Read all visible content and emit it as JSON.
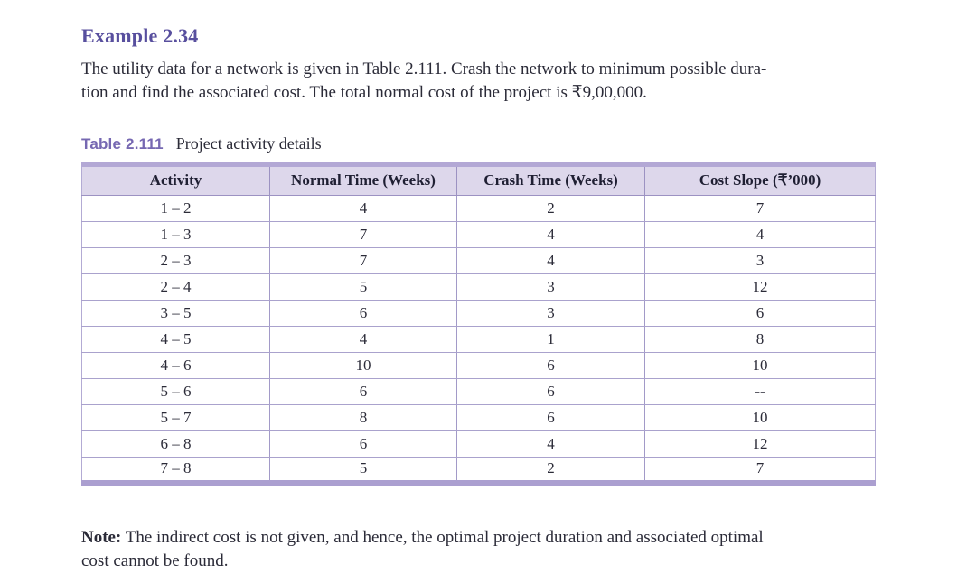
{
  "page": {
    "example_heading": "Example 2.34",
    "intro_line1": "The utility data for a network is given in Table 2.111. Crash the network to minimum possible dura-",
    "intro_line2": "tion and find the associated cost. The total normal cost of the project is ₹9,00,000.",
    "note_label": "Note:",
    "note_line1_rest": "  The indirect cost is not given, and hence, the optimal project duration and associated optimal",
    "note_line2": "cost cannot be found."
  },
  "table": {
    "label": "Table 2.111",
    "caption": "Project activity details",
    "columns": [
      "Activity",
      "Normal Time (Weeks)",
      "Crash Time (Weeks)",
      "Cost Slope (₹’000)"
    ],
    "rows": [
      [
        "1 – 2",
        "4",
        "2",
        "7"
      ],
      [
        "1 – 3",
        "7",
        "4",
        "4"
      ],
      [
        "2 – 3",
        "7",
        "4",
        "3"
      ],
      [
        "2 – 4",
        "5",
        "3",
        "12"
      ],
      [
        "3 – 5",
        "6",
        "3",
        "6"
      ],
      [
        "4 – 5",
        "4",
        "1",
        "8"
      ],
      [
        "4 – 6",
        "10",
        "6",
        "10"
      ],
      [
        "5 – 6",
        "6",
        "6",
        "--"
      ],
      [
        "5 – 7",
        "8",
        "6",
        "10"
      ],
      [
        "6 – 8",
        "6",
        "4",
        "12"
      ],
      [
        "7 – 8",
        "5",
        "2",
        "7"
      ]
    ]
  },
  "colors": {
    "heading_purple": "#584f9e",
    "caption_purple": "#7668b2",
    "header_bg": "#ddd7eb",
    "border_thick_top": "#b3a8d5",
    "border_thick_bottom": "#ab9fd0",
    "border_thin": "#a29ac8",
    "body_text": "#2b2b38"
  }
}
